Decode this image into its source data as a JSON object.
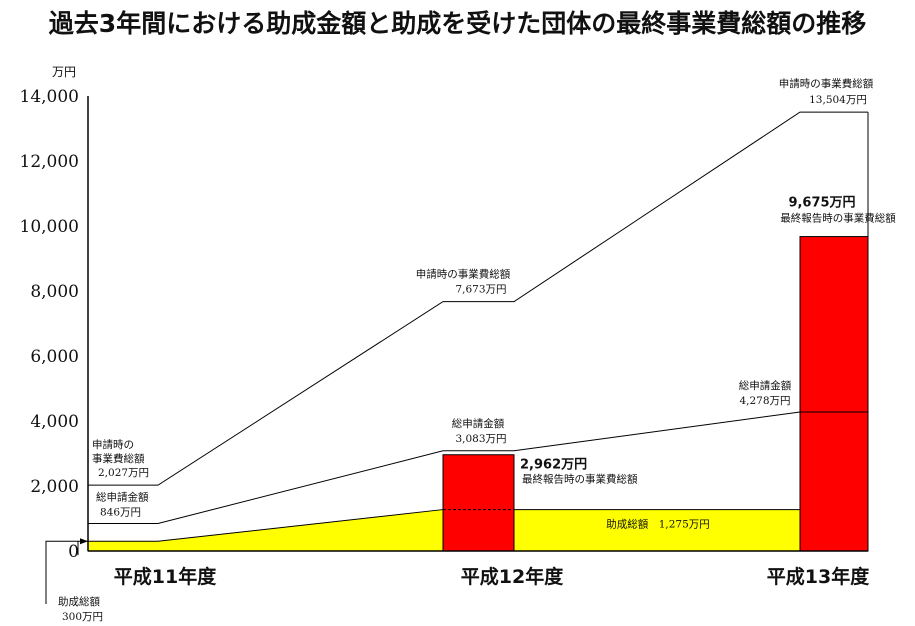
{
  "chart_data": {
    "type": "bar",
    "title": "過去3年間における助成金額と助成を受けた団体の最終事業費総額の推移",
    "ylabel": "万円",
    "ylim": [
      0,
      14000
    ],
    "yticks": [
      0,
      2000,
      4000,
      6000,
      8000,
      10000,
      12000,
      14000
    ],
    "ytick_labels": [
      "0",
      "2,000",
      "4,000",
      "6,000",
      "8,000",
      "10,000",
      "12,000",
      "14,000"
    ],
    "grid": false,
    "categories": [
      "平成11年度",
      "平成12年度",
      "平成13年度"
    ],
    "colors": {
      "subsidy": "#ffff00",
      "final": "#ff0000",
      "lines": "#000000"
    },
    "series": [
      {
        "name": "助成総額",
        "kind": "area",
        "values": [
          300,
          1275,
          1275
        ]
      },
      {
        "name": "最終報告時の事業費総額",
        "kind": "bar",
        "values": [
          null,
          2962,
          9675
        ]
      },
      {
        "name": "総申請金額",
        "kind": "line",
        "values": [
          846,
          3083,
          4278
        ]
      },
      {
        "name": "申請時の事業費総額",
        "kind": "line",
        "values": [
          2027,
          7673,
          13504
        ]
      }
    ],
    "annotations": {
      "subsidy_11_title": "助成総額",
      "subsidy_11_value": "300万円",
      "subsidy_total": "助成総額　1,275万円",
      "apptotal_11_l1": "申請時の",
      "apptotal_11_l2": "事業費総額",
      "apptotal_11_value": "2,027万円",
      "req_11_title": "総申請金額",
      "req_11_value": "846万円",
      "apptotal_12_title": "申請時の事業費総額",
      "apptotal_12_value": "7,673万円",
      "req_12_title": "総申請金額",
      "req_12_value": "3,083万円",
      "final_12_value": "2,962万円",
      "final_12_title": "最終報告時の事業費総額",
      "apptotal_13_title": "申請時の事業費総額",
      "apptotal_13_value": "13,504万円",
      "final_13_value": "9,675万円",
      "final_13_title": "最終報告時の事業費総額",
      "req_13_title": "総申請金額",
      "req_13_value": "4,278万円"
    }
  }
}
